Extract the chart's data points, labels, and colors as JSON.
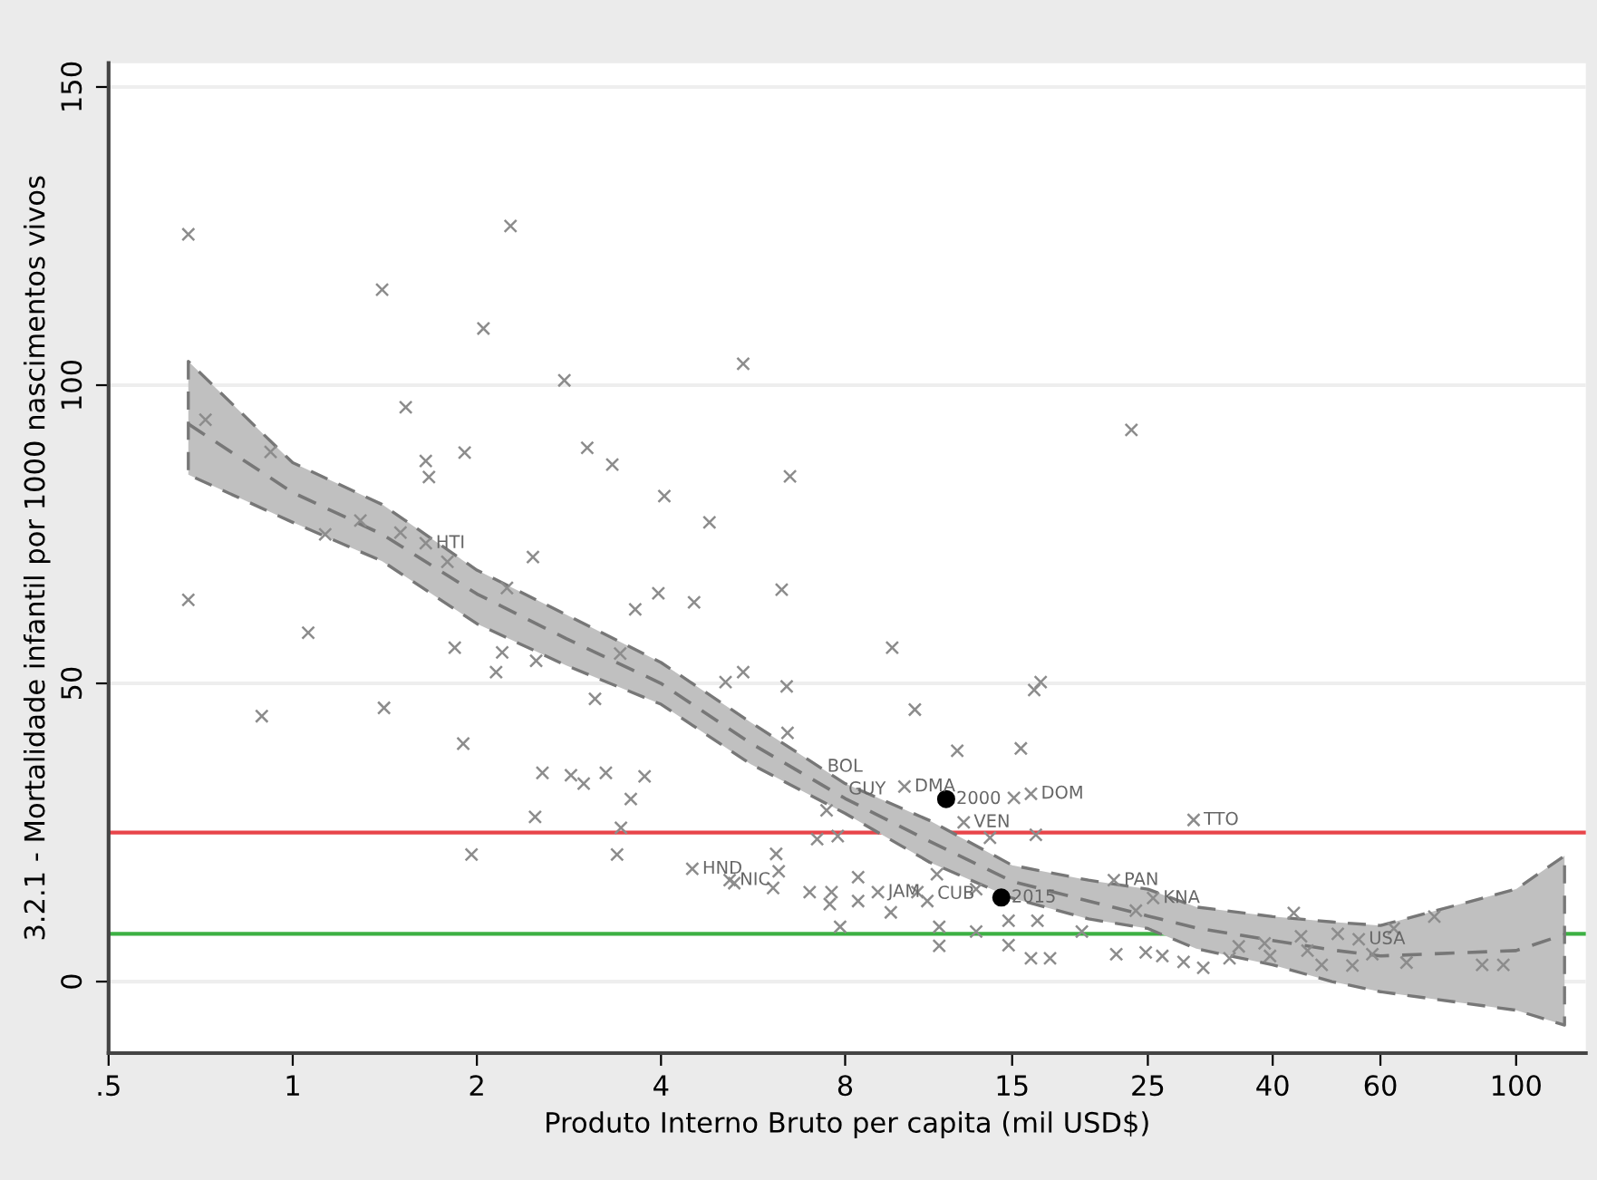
{
  "chart_data": {
    "type": "scatter",
    "xlabel": "Produto Interno Bruto per capita (mil USD$)",
    "ylabel": "3.2.1 - Mortalidade infantil por 1000 nascimentos vivos",
    "log": "x",
    "grid": "y",
    "xlim": [
      0.5,
      130
    ],
    "ylim": [
      -12,
      154
    ],
    "xticks": [
      {
        "value": 0.5,
        "label": ".5"
      },
      1,
      2,
      4,
      8,
      15,
      25,
      40,
      60,
      100
    ],
    "yticks": [
      0,
      50,
      100,
      150
    ],
    "ref_lines": [
      {
        "axis": "y",
        "value": 25,
        "color": "#e8454a"
      },
      {
        "axis": "y",
        "value": 8,
        "color": "#3cb043"
      }
    ],
    "series": [
      {
        "marker": "cross",
        "color": "#8c8c8c",
        "x": [
          9.05,
          0.675,
          2.27,
          1.4,
          2.05,
          2.78,
          0.72,
          1.53,
          0.92,
          1.65,
          1.67,
          1.91,
          3.03,
          3.33,
          1.29,
          1.13,
          1.5,
          1.65,
          1.79,
          2.47,
          0.675,
          1.06,
          0.89,
          1.41,
          1.84,
          2.2,
          2.15,
          2.24,
          2.5,
          1.9,
          3.63,
          3.96,
          4.53,
          3.43,
          3.12,
          2.56,
          2.85,
          2.99,
          3.25,
          3.76,
          3.57,
          2.49,
          3.44,
          1.96,
          3.39,
          4.5,
          6.3,
          9.55,
          5.1,
          5.45,
          6.42,
          6.44,
          10.4,
          12.2,
          15.5,
          16.3,
          16.7,
          10.0,
          15.1,
          16.1,
          12.5,
          7.2,
          7.78,
          16.4,
          13.8,
          7.46,
          5.18,
          5.27,
          6.17,
          6.23,
          6.1,
          7.0,
          7.6,
          7.55,
          8.4,
          8.4,
          9.5,
          7.85,
          10.5,
          10.9,
          11.3,
          11.4,
          11.4,
          13.1,
          14.8,
          14.8,
          16.1,
          17.3,
          16.5,
          13.1,
          19.5,
          22,
          22.2,
          24.8,
          29.7,
          25.5,
          23.9,
          26.4,
          28.6,
          30.8,
          34,
          35.2,
          38.8,
          39.6,
          43.3,
          44.5,
          45.6,
          48.1,
          51.1,
          54,
          55.3,
          58.2,
          63.1,
          66.2,
          73.5,
          88,
          95.3,
          23.5,
          5.45,
          4.05,
          4.8,
          6.5
        ],
        "values": [
          15,
          125.3,
          126.7,
          116,
          109.5,
          100.8,
          94.2,
          96.3,
          88.8,
          87.3,
          84.6,
          88.7,
          89.5,
          86.7,
          77.3,
          75,
          75.3,
          73.5,
          70.4,
          71.2,
          64,
          58.5,
          44.5,
          45.9,
          56,
          55.2,
          51.9,
          66,
          53.8,
          39.9,
          62.4,
          65.1,
          63.6,
          55,
          47.4,
          35,
          34.6,
          33.2,
          35,
          34.4,
          30.6,
          27.6,
          25.8,
          21.3,
          21.3,
          18.9,
          65.7,
          56,
          50.2,
          51.9,
          49.5,
          41.7,
          45.6,
          38.7,
          39.1,
          48.9,
          50.2,
          32.7,
          30.8,
          31.5,
          26.7,
          23.9,
          24.4,
          24.6,
          24.1,
          28.7,
          17,
          16.5,
          21.4,
          18.5,
          15.7,
          15,
          15,
          13,
          17.5,
          13.5,
          11.6,
          9.2,
          15,
          13.5,
          18,
          9.2,
          6,
          15.5,
          10.2,
          6.1,
          3.9,
          3.9,
          10.2,
          8.4,
          8.4,
          17,
          4.6,
          4.9,
          27.1,
          14,
          11.9,
          4.3,
          3.3,
          2.3,
          3.9,
          5.9,
          6.4,
          4.3,
          11.5,
          7.6,
          5.2,
          2.8,
          8,
          2.7,
          7.1,
          4.6,
          8.9,
          3.2,
          10.9,
          2.8,
          2.8,
          92.5,
          103.6,
          81.4,
          77,
          84.7
        ]
      },
      {
        "marker": "circle",
        "color": "#000000",
        "x": [
          11.7,
          14.4
        ],
        "values": [
          30.6,
          14.1
        ]
      },
      {
        "type": "line",
        "line_style": "dashed",
        "color": "#777777",
        "x": [
          0.675,
          1.0,
          1.4,
          2.0,
          2.8,
          4.0,
          5.6,
          8.0,
          11,
          15,
          20,
          25,
          30,
          40,
          50,
          60,
          100,
          120
        ],
        "values": [
          93.5,
          82,
          75,
          65,
          57.5,
          50,
          40,
          30.7,
          23.5,
          16.8,
          13.5,
          11,
          9,
          6.9,
          5.3,
          4.3,
          5.2,
          7.9
        ],
        "lower": [
          85,
          77,
          70.5,
          60,
          53,
          46.5,
          36.5,
          28.2,
          20,
          14,
          10.5,
          8.9,
          5.5,
          2.8,
          0,
          -1.7,
          -4.8,
          -7.3
        ],
        "upper": [
          104,
          87,
          80,
          69,
          61.5,
          53.5,
          43.5,
          33.2,
          27,
          19.5,
          17,
          15.5,
          12.5,
          10.9,
          10,
          9.4,
          15.5,
          21.1
        ]
      }
    ],
    "annotations": [
      {
        "text": "HTI",
        "x": 1.65,
        "y": 73.5
      },
      {
        "text": "BOL",
        "x": 7.2,
        "y": 36
      },
      {
        "text": "GUY",
        "x": 7.8,
        "y": 32.2
      },
      {
        "text": "DMA",
        "x": 10.0,
        "y": 32.7
      },
      {
        "text": "2000",
        "x": 11.7,
        "y": 30.6
      },
      {
        "text": "DOM",
        "x": 16.1,
        "y": 31.5
      },
      {
        "text": "VEN",
        "x": 12.5,
        "y": 26.7
      },
      {
        "text": "HND",
        "x": 4.5,
        "y": 18.9
      },
      {
        "text": "NIC",
        "x": 5.18,
        "y": 17
      },
      {
        "text": "JAM",
        "x": 9.05,
        "y": 15
      },
      {
        "text": "CUB",
        "x": 10.9,
        "y": 14.7
      },
      {
        "text": "2015",
        "x": 14.4,
        "y": 14.1
      },
      {
        "text": "PAN",
        "x": 22,
        "y": 17
      },
      {
        "text": "KNA",
        "x": 25.5,
        "y": 14
      },
      {
        "text": "TTO",
        "x": 29.7,
        "y": 27.1
      },
      {
        "text": "USA",
        "x": 55.3,
        "y": 7.1
      }
    ]
  }
}
